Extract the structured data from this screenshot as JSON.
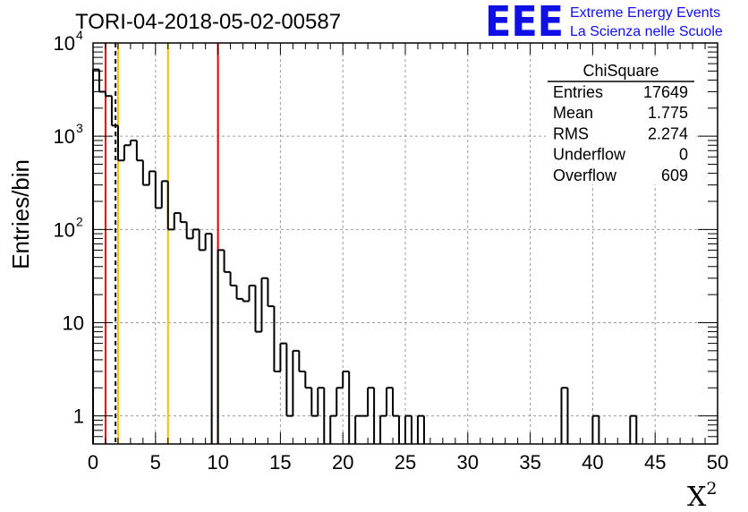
{
  "title": "TORI-04-2018-05-02-00587",
  "logo": {
    "mark": "EEE",
    "line1": "Extreme Energy Events",
    "line2": "La Scienza nelle Scuole",
    "color": "#1010e6"
  },
  "stats_box": {
    "name": "ChiSquare",
    "rows": [
      {
        "label": "Entries",
        "value": "17649"
      },
      {
        "label": "Mean",
        "value": "1.775"
      },
      {
        "label": "RMS",
        "value": "2.274"
      },
      {
        "label": "Underflow",
        "value": "0"
      },
      {
        "label": "Overflow",
        "value": "609"
      }
    ]
  },
  "chart_data": {
    "type": "bar",
    "histogram_style": "step",
    "title": "TORI-04-2018-05-02-00587",
    "xlabel": "X",
    "xlabel_superscript": "2",
    "ylabel": "Entries/bin",
    "xlim": [
      0,
      50
    ],
    "ylim": [
      0.5,
      10000
    ],
    "yscale": "log",
    "grid": true,
    "bin_width": 0.5,
    "x_ticks": [
      "0",
      "5",
      "10",
      "15",
      "20",
      "25",
      "30",
      "35",
      "40",
      "45",
      "50"
    ],
    "y_ticks": [
      {
        "value": 1,
        "label": "1",
        "exp": ""
      },
      {
        "value": 10,
        "label": "10",
        "exp": ""
      },
      {
        "value": 100,
        "label": "10",
        "exp": "2"
      },
      {
        "value": 1000,
        "label": "10",
        "exp": "3"
      },
      {
        "value": 10000,
        "label": "10",
        "exp": "4"
      }
    ],
    "bins": [
      {
        "x": 0.0,
        "y": 5200
      },
      {
        "x": 0.5,
        "y": 3000
      },
      {
        "x": 1.0,
        "y": 2700
      },
      {
        "x": 1.5,
        "y": 1300
      },
      {
        "x": 2.0,
        "y": 550
      },
      {
        "x": 2.5,
        "y": 800
      },
      {
        "x": 3.0,
        "y": 900
      },
      {
        "x": 3.5,
        "y": 550
      },
      {
        "x": 4.0,
        "y": 300
      },
      {
        "x": 4.5,
        "y": 420
      },
      {
        "x": 5.0,
        "y": 170
      },
      {
        "x": 5.5,
        "y": 330
      },
      {
        "x": 6.0,
        "y": 100
      },
      {
        "x": 6.5,
        "y": 150
      },
      {
        "x": 7.0,
        "y": 120
      },
      {
        "x": 7.5,
        "y": 80
      },
      {
        "x": 8.0,
        "y": 100
      },
      {
        "x": 8.5,
        "y": 60
      },
      {
        "x": 9.0,
        "y": 90
      },
      {
        "x": 9.5,
        "y": 0
      },
      {
        "x": 10.0,
        "y": 60
      },
      {
        "x": 10.5,
        "y": 35
      },
      {
        "x": 11.0,
        "y": 25
      },
      {
        "x": 11.5,
        "y": 18
      },
      {
        "x": 12.0,
        "y": 17
      },
      {
        "x": 12.5,
        "y": 25
      },
      {
        "x": 13.0,
        "y": 8
      },
      {
        "x": 13.5,
        "y": 30
      },
      {
        "x": 14.0,
        "y": 15
      },
      {
        "x": 14.5,
        "y": 3
      },
      {
        "x": 15.0,
        "y": 6
      },
      {
        "x": 15.5,
        "y": 1
      },
      {
        "x": 16.0,
        "y": 5
      },
      {
        "x": 16.5,
        "y": 3
      },
      {
        "x": 17.0,
        "y": 2
      },
      {
        "x": 17.5,
        "y": 1
      },
      {
        "x": 18.0,
        "y": 2
      },
      {
        "x": 18.5,
        "y": 0
      },
      {
        "x": 19.0,
        "y": 1
      },
      {
        "x": 19.5,
        "y": 2
      },
      {
        "x": 20.0,
        "y": 3
      },
      {
        "x": 20.5,
        "y": 0
      },
      {
        "x": 21.0,
        "y": 1
      },
      {
        "x": 21.5,
        "y": 1
      },
      {
        "x": 22.0,
        "y": 2
      },
      {
        "x": 22.5,
        "y": 0
      },
      {
        "x": 23.0,
        "y": 1
      },
      {
        "x": 23.5,
        "y": 2
      },
      {
        "x": 24.0,
        "y": 1
      },
      {
        "x": 24.5,
        "y": 0
      },
      {
        "x": 25.0,
        "y": 1
      },
      {
        "x": 25.5,
        "y": 0
      },
      {
        "x": 26.0,
        "y": 1
      },
      {
        "x": 37.5,
        "y": 2
      },
      {
        "x": 40.0,
        "y": 1
      },
      {
        "x": 43.0,
        "y": 1
      }
    ],
    "reference_lines": [
      {
        "x": 1,
        "color": "#e00000",
        "style": "solid"
      },
      {
        "x": 1.8,
        "color": "#000000",
        "style": "dashed"
      },
      {
        "x": 2,
        "color": "#f2c200",
        "style": "solid"
      },
      {
        "x": 6,
        "color": "#f2c200",
        "style": "solid"
      },
      {
        "x": 10,
        "color": "#e00000",
        "style": "solid"
      }
    ]
  }
}
